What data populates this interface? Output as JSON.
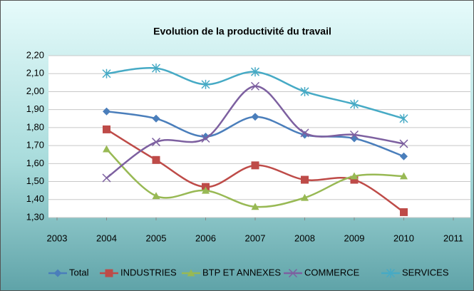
{
  "chart_data": {
    "type": "line",
    "title": "Evolution de la productivité du travail",
    "x": [
      2004,
      2005,
      2006,
      2007,
      2008,
      2009,
      2010
    ],
    "xlim": [
      2003,
      2011
    ],
    "xticks": [
      2003,
      2004,
      2005,
      2006,
      2007,
      2008,
      2009,
      2010,
      2011
    ],
    "ylim": [
      1.3,
      2.2
    ],
    "yticks": [
      {
        "value": 1.3,
        "label": "1,30"
      },
      {
        "value": 1.4,
        "label": "1,40"
      },
      {
        "value": 1.5,
        "label": "1,50"
      },
      {
        "value": 1.6,
        "label": "1,60"
      },
      {
        "value": 1.7,
        "label": "1,70"
      },
      {
        "value": 1.8,
        "label": "1,80"
      },
      {
        "value": 1.9,
        "label": "1,90"
      },
      {
        "value": 2.0,
        "label": "2,00"
      },
      {
        "value": 2.1,
        "label": "2,10"
      },
      {
        "value": 2.2,
        "label": "2,20"
      }
    ],
    "grid": true,
    "legend": "bottom",
    "series": [
      {
        "name": "Total",
        "color": "#4a7ebb",
        "marker": "diamond",
        "values": [
          1.89,
          1.85,
          1.75,
          1.86,
          1.76,
          1.74,
          1.64
        ]
      },
      {
        "name": "INDUSTRIES",
        "color": "#be4b48",
        "marker": "square",
        "values": [
          1.79,
          1.62,
          1.47,
          1.59,
          1.51,
          1.51,
          1.33
        ]
      },
      {
        "name": "BTP ET ANNEXES",
        "color": "#98b954",
        "marker": "triangle",
        "values": [
          1.68,
          1.42,
          1.45,
          1.36,
          1.41,
          1.53,
          1.53
        ]
      },
      {
        "name": "COMMERCE",
        "color": "#7d60a0",
        "marker": "x",
        "values": [
          1.52,
          1.72,
          1.74,
          2.03,
          1.77,
          1.76,
          1.71
        ]
      },
      {
        "name": "SERVICES",
        "color": "#46aac5",
        "marker": "star",
        "values": [
          2.1,
          2.13,
          2.04,
          2.11,
          2.0,
          1.93,
          1.85
        ]
      }
    ]
  }
}
